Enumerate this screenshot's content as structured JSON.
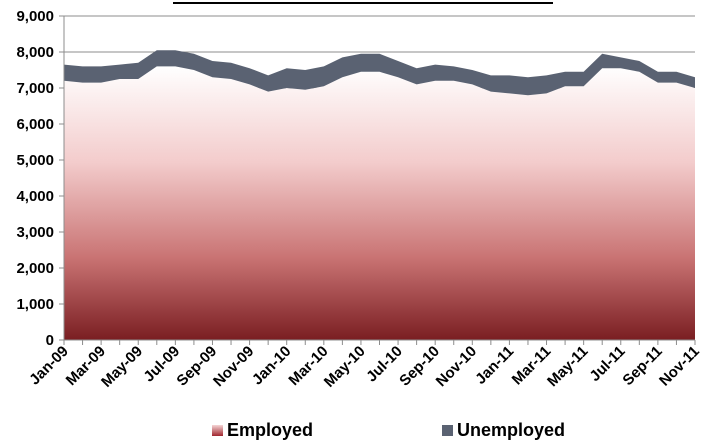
{
  "chart_data": {
    "type": "area",
    "stacked": true,
    "title": "",
    "xlabel": "",
    "ylabel": "",
    "ylim": [
      0,
      9000
    ],
    "y_ticks": [
      "0",
      "1,000",
      "2,000",
      "3,000",
      "4,000",
      "5,000",
      "6,000",
      "7,000",
      "8,000",
      "9,000"
    ],
    "grid": true,
    "legend_position": "bottom",
    "x_labels_shown": [
      "Jan-09",
      "Mar-09",
      "May-09",
      "Jul-09",
      "Sep-09",
      "Nov-09",
      "Jan-10",
      "Mar-10",
      "May-10",
      "Jul-10",
      "Sep-10",
      "Nov-10",
      "Jan-11",
      "Mar-11",
      "May-11",
      "Jul-11",
      "Sep-11",
      "Nov-11"
    ],
    "categories": [
      "Jan-09",
      "Feb-09",
      "Mar-09",
      "Apr-09",
      "May-09",
      "Jun-09",
      "Jul-09",
      "Aug-09",
      "Sep-09",
      "Oct-09",
      "Nov-09",
      "Dec-09",
      "Jan-10",
      "Feb-10",
      "Mar-10",
      "Apr-10",
      "May-10",
      "Jun-10",
      "Jul-10",
      "Aug-10",
      "Sep-10",
      "Oct-10",
      "Nov-10",
      "Dec-10",
      "Jan-11",
      "Feb-11",
      "Mar-11",
      "Apr-11",
      "May-11",
      "Jun-11",
      "Jul-11",
      "Aug-11",
      "Sep-11",
      "Oct-11",
      "Nov-11"
    ],
    "series": [
      {
        "name": "Employed",
        "color": "#a0262e",
        "values": [
          7200,
          7150,
          7150,
          7250,
          7250,
          7600,
          7600,
          7500,
          7300,
          7250,
          7100,
          6900,
          7000,
          6950,
          7050,
          7300,
          7450,
          7450,
          7300,
          7100,
          7200,
          7200,
          7100,
          6900,
          6850,
          6800,
          6850,
          7050,
          7050,
          7550,
          7550,
          7450,
          7150,
          7150,
          7000
        ]
      },
      {
        "name": "Unemployed",
        "color": "#5a6272",
        "values": [
          450,
          450,
          450,
          400,
          450,
          450,
          450,
          450,
          450,
          450,
          450,
          450,
          550,
          550,
          550,
          550,
          500,
          500,
          450,
          450,
          450,
          400,
          400,
          450,
          500,
          500,
          500,
          400,
          400,
          400,
          300,
          300,
          300,
          300,
          300
        ]
      }
    ]
  },
  "legend": {
    "employed_label": "Employed",
    "unemployed_label": "Unemployed"
  }
}
